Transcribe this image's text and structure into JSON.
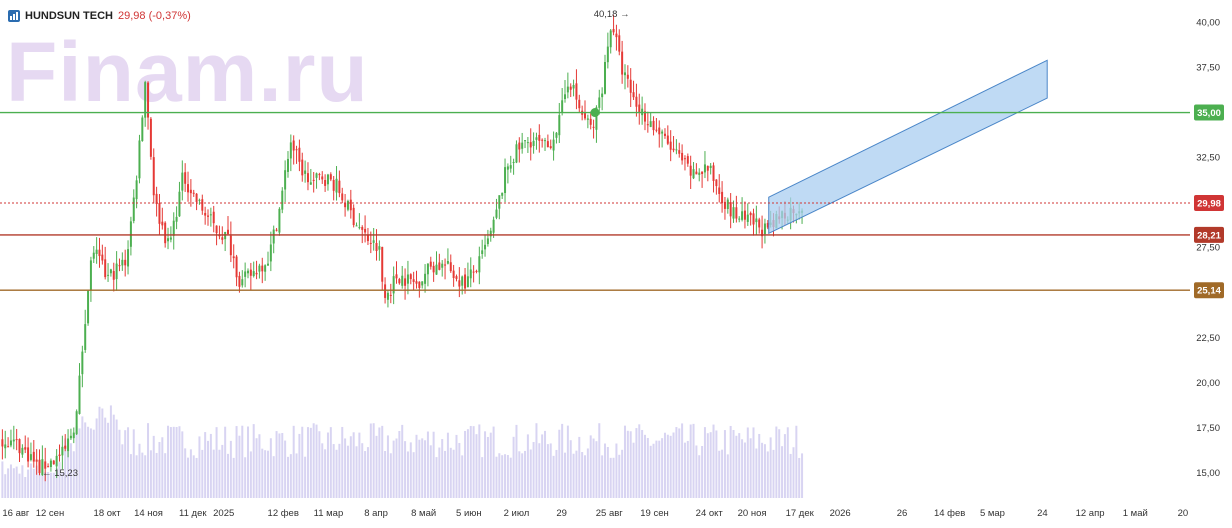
{
  "header": {
    "symbol": "HUNDSUN TECH",
    "price_change": "29,98 (-0,37%)"
  },
  "watermark": "Finam.ru",
  "colors": {
    "up": "#4caf50",
    "down": "#e53935",
    "volume": "#d8d4f2",
    "level_green": "#4caf50",
    "level_red": "#b23a2a",
    "level_brown": "#a06a28",
    "current": "#d03535",
    "channel_fill": "#a9cdf0",
    "channel_stroke": "#4a86c8"
  },
  "chart_data": {
    "type": "candlestick",
    "ylim": [
      13.5,
      40.8
    ],
    "y_ticks": [
      {
        "v": 15,
        "label": "15,00"
      },
      {
        "v": 17.5,
        "label": "17,50"
      },
      {
        "v": 20,
        "label": "20,00"
      },
      {
        "v": 22.5,
        "label": "22,50"
      },
      {
        "v": 25,
        "label": "25,00"
      },
      {
        "v": 27.5,
        "label": "27,50"
      },
      {
        "v": 30,
        "label": "30,00"
      },
      {
        "v": 32.5,
        "label": "32,50"
      },
      {
        "v": 35,
        "label": "35,00"
      },
      {
        "v": 37.5,
        "label": "37,50"
      },
      {
        "v": 40,
        "label": "40,00"
      }
    ],
    "x_ticks": [
      {
        "label": "16 авг",
        "t": 0
      },
      {
        "label": "12 сен",
        "t": 1.0
      },
      {
        "label": "18 окт",
        "t": 2.2
      },
      {
        "label": "14 ноя",
        "t": 3.07
      },
      {
        "label": "11 дек",
        "t": 4.0
      },
      {
        "label": "2025",
        "t": 4.65
      },
      {
        "label": "12 фев",
        "t": 5.9
      },
      {
        "label": "11 мар",
        "t": 6.85
      },
      {
        "label": "8 апр",
        "t": 7.85
      },
      {
        "label": "8 май",
        "t": 8.85
      },
      {
        "label": "5 июн",
        "t": 9.8
      },
      {
        "label": "2 июл",
        "t": 10.8
      },
      {
        "label": "29",
        "t": 11.75
      },
      {
        "label": "25 авг",
        "t": 12.75
      },
      {
        "label": "19 сен",
        "t": 13.7
      },
      {
        "label": "24 окт",
        "t": 14.85
      },
      {
        "label": "20 ноя",
        "t": 15.75
      },
      {
        "label": "17 дек",
        "t": 16.75
      },
      {
        "label": "2026",
        "t": 17.6
      },
      {
        "label": "26",
        "t": 18.9
      },
      {
        "label": "14 фев",
        "t": 19.9
      },
      {
        "label": "5 мар",
        "t": 20.8
      },
      {
        "label": "24",
        "t": 21.85
      },
      {
        "label": "12 апр",
        "t": 22.85
      },
      {
        "label": "1 май",
        "t": 23.8
      },
      {
        "label": "20",
        "t": 24.8
      }
    ],
    "price_path": [
      [
        0,
        16.9
      ],
      [
        0.3,
        16.6
      ],
      [
        0.6,
        15.9
      ],
      [
        0.75,
        15.23
      ],
      [
        1.0,
        15.6
      ],
      [
        1.3,
        16.1
      ],
      [
        1.55,
        18.0
      ],
      [
        1.75,
        24.0
      ],
      [
        1.9,
        27.5
      ],
      [
        2.2,
        25.8
      ],
      [
        2.6,
        26.8
      ],
      [
        2.8,
        31.0
      ],
      [
        3.0,
        36.8
      ],
      [
        3.2,
        30.0
      ],
      [
        3.5,
        27.5
      ],
      [
        3.8,
        31.5
      ],
      [
        4.1,
        30.0
      ],
      [
        4.5,
        28.5
      ],
      [
        4.75,
        28.0
      ],
      [
        5.0,
        25.5
      ],
      [
        5.3,
        26.2
      ],
      [
        5.6,
        27.0
      ],
      [
        5.85,
        30.0
      ],
      [
        6.05,
        33.5
      ],
      [
        6.25,
        32.0
      ],
      [
        6.5,
        31.0
      ],
      [
        6.7,
        31.5
      ],
      [
        7.0,
        31.0
      ],
      [
        7.3,
        29.5
      ],
      [
        7.6,
        28.2
      ],
      [
        7.95,
        27.2
      ],
      [
        8.0,
        24.5
      ],
      [
        8.3,
        26.0
      ],
      [
        8.7,
        25.5
      ],
      [
        9.0,
        26.5
      ],
      [
        9.3,
        26.5
      ],
      [
        9.7,
        25.5
      ],
      [
        10.0,
        26.5
      ],
      [
        10.3,
        28.5
      ],
      [
        10.6,
        32.0
      ],
      [
        10.85,
        33.0
      ],
      [
        11.1,
        33.5
      ],
      [
        11.45,
        33.0
      ],
      [
        11.7,
        34.5
      ],
      [
        11.9,
        37.0
      ],
      [
        12.15,
        35.0
      ],
      [
        12.4,
        34.0
      ],
      [
        12.6,
        36.5
      ],
      [
        12.8,
        40.18
      ],
      [
        13.0,
        37.5
      ],
      [
        13.3,
        35.5
      ],
      [
        13.6,
        34.5
      ],
      [
        13.9,
        33.5
      ],
      [
        14.2,
        32.5
      ],
      [
        14.5,
        31.5
      ],
      [
        14.8,
        32.0
      ],
      [
        15.0,
        31.0
      ],
      [
        15.3,
        29.5
      ],
      [
        15.6,
        29.0
      ],
      [
        15.85,
        28.8
      ],
      [
        16.1,
        28.3
      ],
      [
        16.35,
        29.3
      ],
      [
        16.6,
        29.6
      ],
      [
        16.85,
        29.98
      ]
    ],
    "last_price": 29.98,
    "last_t": 16.85,
    "high_label": {
      "text": "40,18 →",
      "t": 12.8,
      "v": 40.18
    },
    "low_label": {
      "text": "← 15,23",
      "t": 0.75,
      "v": 15.23
    },
    "marker_point": {
      "t": 12.45,
      "v": 35.0
    },
    "levels": [
      {
        "v": 35.0,
        "label": "35,00",
        "color": "#4caf50"
      },
      {
        "v": 29.98,
        "label": "29,98",
        "color": "#d03535",
        "dashed": true
      },
      {
        "v": 28.21,
        "label": "28,21",
        "color": "#b23a2a"
      },
      {
        "v": 25.14,
        "label": "25,14",
        "color": "#a06a28"
      }
    ],
    "channel": {
      "t1": 16.1,
      "t2": 21.95,
      "upper_start": 30.3,
      "upper_end": 37.9,
      "lower_start": 28.3,
      "lower_end": 35.8
    },
    "volume_level_pct": [
      0.18,
      0.16,
      0.6,
      0.4,
      0.3
    ]
  }
}
